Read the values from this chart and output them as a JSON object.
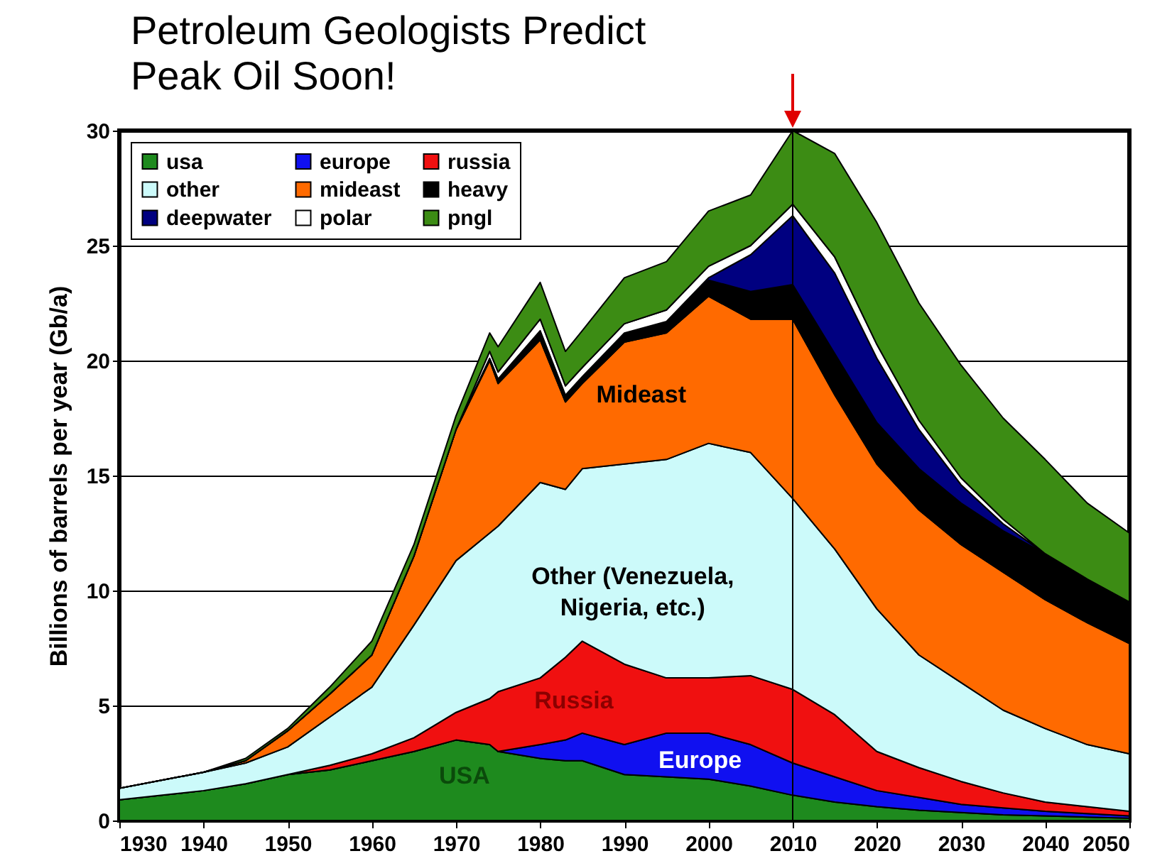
{
  "chart_data": {
    "type": "area",
    "stacked": true,
    "title": "Petroleum Geologists Predict Peak Oil Soon!",
    "ylabel": "Billions of barrels per year (Gb/a)",
    "x": [
      1930,
      1940,
      1945,
      1950,
      1955,
      1960,
      1965,
      1970,
      1974,
      1975,
      1980,
      1983,
      1985,
      1990,
      1995,
      2000,
      2005,
      2010,
      2015,
      2020,
      2025,
      2030,
      2035,
      2040,
      2045,
      2050
    ],
    "series": [
      {
        "name": "usa",
        "color": "#1e8a1e",
        "values": [
          0.9,
          1.3,
          1.6,
          2.0,
          2.2,
          2.6,
          3.0,
          3.5,
          3.3,
          3.0,
          2.7,
          2.6,
          2.6,
          2.0,
          1.9,
          1.8,
          1.5,
          1.1,
          0.8,
          0.6,
          0.45,
          0.35,
          0.25,
          0.2,
          0.15,
          0.1
        ]
      },
      {
        "name": "europe",
        "color": "#1010f0",
        "values": [
          0,
          0,
          0,
          0,
          0,
          0,
          0,
          0,
          0,
          0,
          0.6,
          0.9,
          1.2,
          1.3,
          1.9,
          2.0,
          1.8,
          1.4,
          1.1,
          0.7,
          0.55,
          0.35,
          0.3,
          0.2,
          0.15,
          0.1
        ]
      },
      {
        "name": "russia",
        "color": "#f01010",
        "values": [
          0,
          0,
          0,
          0,
          0.2,
          0.3,
          0.6,
          1.2,
          2.0,
          2.6,
          2.9,
          3.6,
          4.0,
          3.5,
          2.4,
          2.4,
          3.0,
          3.2,
          2.7,
          1.7,
          1.3,
          1.0,
          0.65,
          0.4,
          0.3,
          0.2
        ]
      },
      {
        "name": "other",
        "color": "#ccfafa",
        "values": [
          0.5,
          0.8,
          0.9,
          1.2,
          2.1,
          2.9,
          4.9,
          6.6,
          7.2,
          7.2,
          8.5,
          7.3,
          7.5,
          8.7,
          9.5,
          10.2,
          9.7,
          8.3,
          7.2,
          6.2,
          4.9,
          4.3,
          3.6,
          3.2,
          2.7,
          2.5
        ]
      },
      {
        "name": "mideast",
        "color": "#ff6a00",
        "values": [
          0,
          0,
          0.1,
          0.7,
          1.0,
          1.4,
          3.0,
          5.7,
          7.5,
          6.2,
          6.2,
          3.8,
          3.7,
          5.3,
          5.5,
          6.4,
          5.8,
          7.8,
          6.7,
          6.3,
          6.3,
          6.0,
          6.0,
          5.6,
          5.3,
          4.8
        ]
      },
      {
        "name": "heavy",
        "color": "#000000",
        "values": [
          0,
          0,
          0,
          0,
          0,
          0,
          0,
          0,
          0.1,
          0.2,
          0.4,
          0.3,
          0.3,
          0.4,
          0.5,
          0.7,
          1.2,
          1.5,
          1.8,
          1.8,
          1.8,
          1.8,
          1.8,
          2.0,
          1.9,
          1.8
        ]
      },
      {
        "name": "deepwater",
        "color": "#000080",
        "values": [
          0,
          0,
          0,
          0,
          0,
          0,
          0,
          0,
          0,
          0,
          0,
          0,
          0,
          0,
          0,
          0.1,
          1.6,
          3.0,
          3.5,
          2.8,
          1.7,
          0.8,
          0.3,
          0,
          0,
          0
        ]
      },
      {
        "name": "polar",
        "color": "#ffffff",
        "values": [
          0,
          0,
          0,
          0,
          0,
          0,
          0,
          0,
          0.3,
          0.3,
          0.5,
          0.4,
          0.4,
          0.4,
          0.5,
          0.5,
          0.4,
          0.5,
          0.7,
          0.6,
          0.4,
          0.3,
          0.2,
          0,
          0,
          0
        ]
      },
      {
        "name": "pngl",
        "color": "#3c8c14",
        "values": [
          0,
          0,
          0.1,
          0.1,
          0.3,
          0.6,
          0.5,
          0.6,
          0.8,
          1.1,
          1.6,
          1.5,
          1.6,
          2.0,
          2.1,
          2.4,
          2.2,
          3.2,
          4.5,
          5.3,
          5.1,
          4.9,
          4.4,
          4.1,
          3.3,
          3.0
        ]
      }
    ],
    "xlim": [
      1930,
      2050
    ],
    "xticks": [
      1930,
      1940,
      1950,
      1960,
      1970,
      1980,
      1990,
      2000,
      2010,
      2020,
      2030,
      2040,
      2050
    ],
    "ylim": [
      0,
      30
    ],
    "yticks": [
      0,
      5,
      10,
      15,
      20,
      25,
      30
    ],
    "grid": "y",
    "legend": "top left",
    "ref_lines": [
      {
        "axis": "x",
        "value": 2010,
        "color": "#000000"
      }
    ],
    "annotations": [
      "Mideast",
      "Other (Venezuela,\nNigeria, etc.)",
      "Russia",
      "USA",
      "Europe"
    ]
  }
}
